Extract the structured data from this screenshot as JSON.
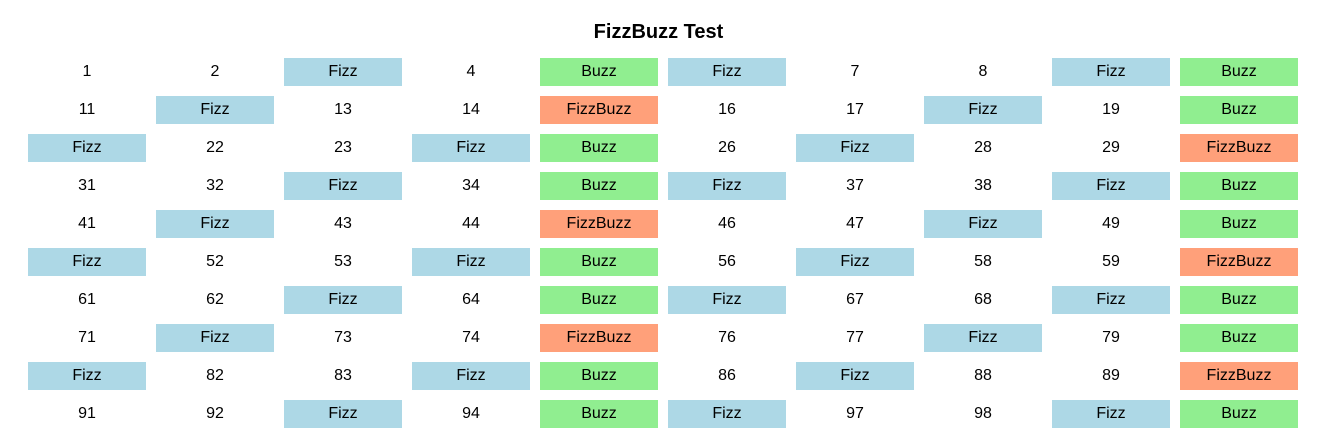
{
  "page": {
    "title": "FizzBuzz Test"
  },
  "colors": {
    "fizz": "#add8e6",
    "buzz": "#90ee90",
    "fizzbuzz": "#ffa07a"
  },
  "grid": {
    "cells": [
      {
        "text": "1",
        "kind": "number"
      },
      {
        "text": "2",
        "kind": "number"
      },
      {
        "text": "Fizz",
        "kind": "fizz"
      },
      {
        "text": "4",
        "kind": "number"
      },
      {
        "text": "Buzz",
        "kind": "buzz"
      },
      {
        "text": "Fizz",
        "kind": "fizz"
      },
      {
        "text": "7",
        "kind": "number"
      },
      {
        "text": "8",
        "kind": "number"
      },
      {
        "text": "Fizz",
        "kind": "fizz"
      },
      {
        "text": "Buzz",
        "kind": "buzz"
      },
      {
        "text": "11",
        "kind": "number"
      },
      {
        "text": "Fizz",
        "kind": "fizz"
      },
      {
        "text": "13",
        "kind": "number"
      },
      {
        "text": "14",
        "kind": "number"
      },
      {
        "text": "FizzBuzz",
        "kind": "fizzbuzz"
      },
      {
        "text": "16",
        "kind": "number"
      },
      {
        "text": "17",
        "kind": "number"
      },
      {
        "text": "Fizz",
        "kind": "fizz"
      },
      {
        "text": "19",
        "kind": "number"
      },
      {
        "text": "Buzz",
        "kind": "buzz"
      },
      {
        "text": "Fizz",
        "kind": "fizz"
      },
      {
        "text": "22",
        "kind": "number"
      },
      {
        "text": "23",
        "kind": "number"
      },
      {
        "text": "Fizz",
        "kind": "fizz"
      },
      {
        "text": "Buzz",
        "kind": "buzz"
      },
      {
        "text": "26",
        "kind": "number"
      },
      {
        "text": "Fizz",
        "kind": "fizz"
      },
      {
        "text": "28",
        "kind": "number"
      },
      {
        "text": "29",
        "kind": "number"
      },
      {
        "text": "FizzBuzz",
        "kind": "fizzbuzz"
      },
      {
        "text": "31",
        "kind": "number"
      },
      {
        "text": "32",
        "kind": "number"
      },
      {
        "text": "Fizz",
        "kind": "fizz"
      },
      {
        "text": "34",
        "kind": "number"
      },
      {
        "text": "Buzz",
        "kind": "buzz"
      },
      {
        "text": "Fizz",
        "kind": "fizz"
      },
      {
        "text": "37",
        "kind": "number"
      },
      {
        "text": "38",
        "kind": "number"
      },
      {
        "text": "Fizz",
        "kind": "fizz"
      },
      {
        "text": "Buzz",
        "kind": "buzz"
      },
      {
        "text": "41",
        "kind": "number"
      },
      {
        "text": "Fizz",
        "kind": "fizz"
      },
      {
        "text": "43",
        "kind": "number"
      },
      {
        "text": "44",
        "kind": "number"
      },
      {
        "text": "FizzBuzz",
        "kind": "fizzbuzz"
      },
      {
        "text": "46",
        "kind": "number"
      },
      {
        "text": "47",
        "kind": "number"
      },
      {
        "text": "Fizz",
        "kind": "fizz"
      },
      {
        "text": "49",
        "kind": "number"
      },
      {
        "text": "Buzz",
        "kind": "buzz"
      },
      {
        "text": "Fizz",
        "kind": "fizz"
      },
      {
        "text": "52",
        "kind": "number"
      },
      {
        "text": "53",
        "kind": "number"
      },
      {
        "text": "Fizz",
        "kind": "fizz"
      },
      {
        "text": "Buzz",
        "kind": "buzz"
      },
      {
        "text": "56",
        "kind": "number"
      },
      {
        "text": "Fizz",
        "kind": "fizz"
      },
      {
        "text": "58",
        "kind": "number"
      },
      {
        "text": "59",
        "kind": "number"
      },
      {
        "text": "FizzBuzz",
        "kind": "fizzbuzz"
      },
      {
        "text": "61",
        "kind": "number"
      },
      {
        "text": "62",
        "kind": "number"
      },
      {
        "text": "Fizz",
        "kind": "fizz"
      },
      {
        "text": "64",
        "kind": "number"
      },
      {
        "text": "Buzz",
        "kind": "buzz"
      },
      {
        "text": "Fizz",
        "kind": "fizz"
      },
      {
        "text": "67",
        "kind": "number"
      },
      {
        "text": "68",
        "kind": "number"
      },
      {
        "text": "Fizz",
        "kind": "fizz"
      },
      {
        "text": "Buzz",
        "kind": "buzz"
      },
      {
        "text": "71",
        "kind": "number"
      },
      {
        "text": "Fizz",
        "kind": "fizz"
      },
      {
        "text": "73",
        "kind": "number"
      },
      {
        "text": "74",
        "kind": "number"
      },
      {
        "text": "FizzBuzz",
        "kind": "fizzbuzz"
      },
      {
        "text": "76",
        "kind": "number"
      },
      {
        "text": "77",
        "kind": "number"
      },
      {
        "text": "Fizz",
        "kind": "fizz"
      },
      {
        "text": "79",
        "kind": "number"
      },
      {
        "text": "Buzz",
        "kind": "buzz"
      },
      {
        "text": "Fizz",
        "kind": "fizz"
      },
      {
        "text": "82",
        "kind": "number"
      },
      {
        "text": "83",
        "kind": "number"
      },
      {
        "text": "Fizz",
        "kind": "fizz"
      },
      {
        "text": "Buzz",
        "kind": "buzz"
      },
      {
        "text": "86",
        "kind": "number"
      },
      {
        "text": "Fizz",
        "kind": "fizz"
      },
      {
        "text": "88",
        "kind": "number"
      },
      {
        "text": "89",
        "kind": "number"
      },
      {
        "text": "FizzBuzz",
        "kind": "fizzbuzz"
      },
      {
        "text": "91",
        "kind": "number"
      },
      {
        "text": "92",
        "kind": "number"
      },
      {
        "text": "Fizz",
        "kind": "fizz"
      },
      {
        "text": "94",
        "kind": "number"
      },
      {
        "text": "Buzz",
        "kind": "buzz"
      },
      {
        "text": "Fizz",
        "kind": "fizz"
      },
      {
        "text": "97",
        "kind": "number"
      },
      {
        "text": "98",
        "kind": "number"
      },
      {
        "text": "Fizz",
        "kind": "fizz"
      },
      {
        "text": "Buzz",
        "kind": "buzz"
      }
    ]
  }
}
